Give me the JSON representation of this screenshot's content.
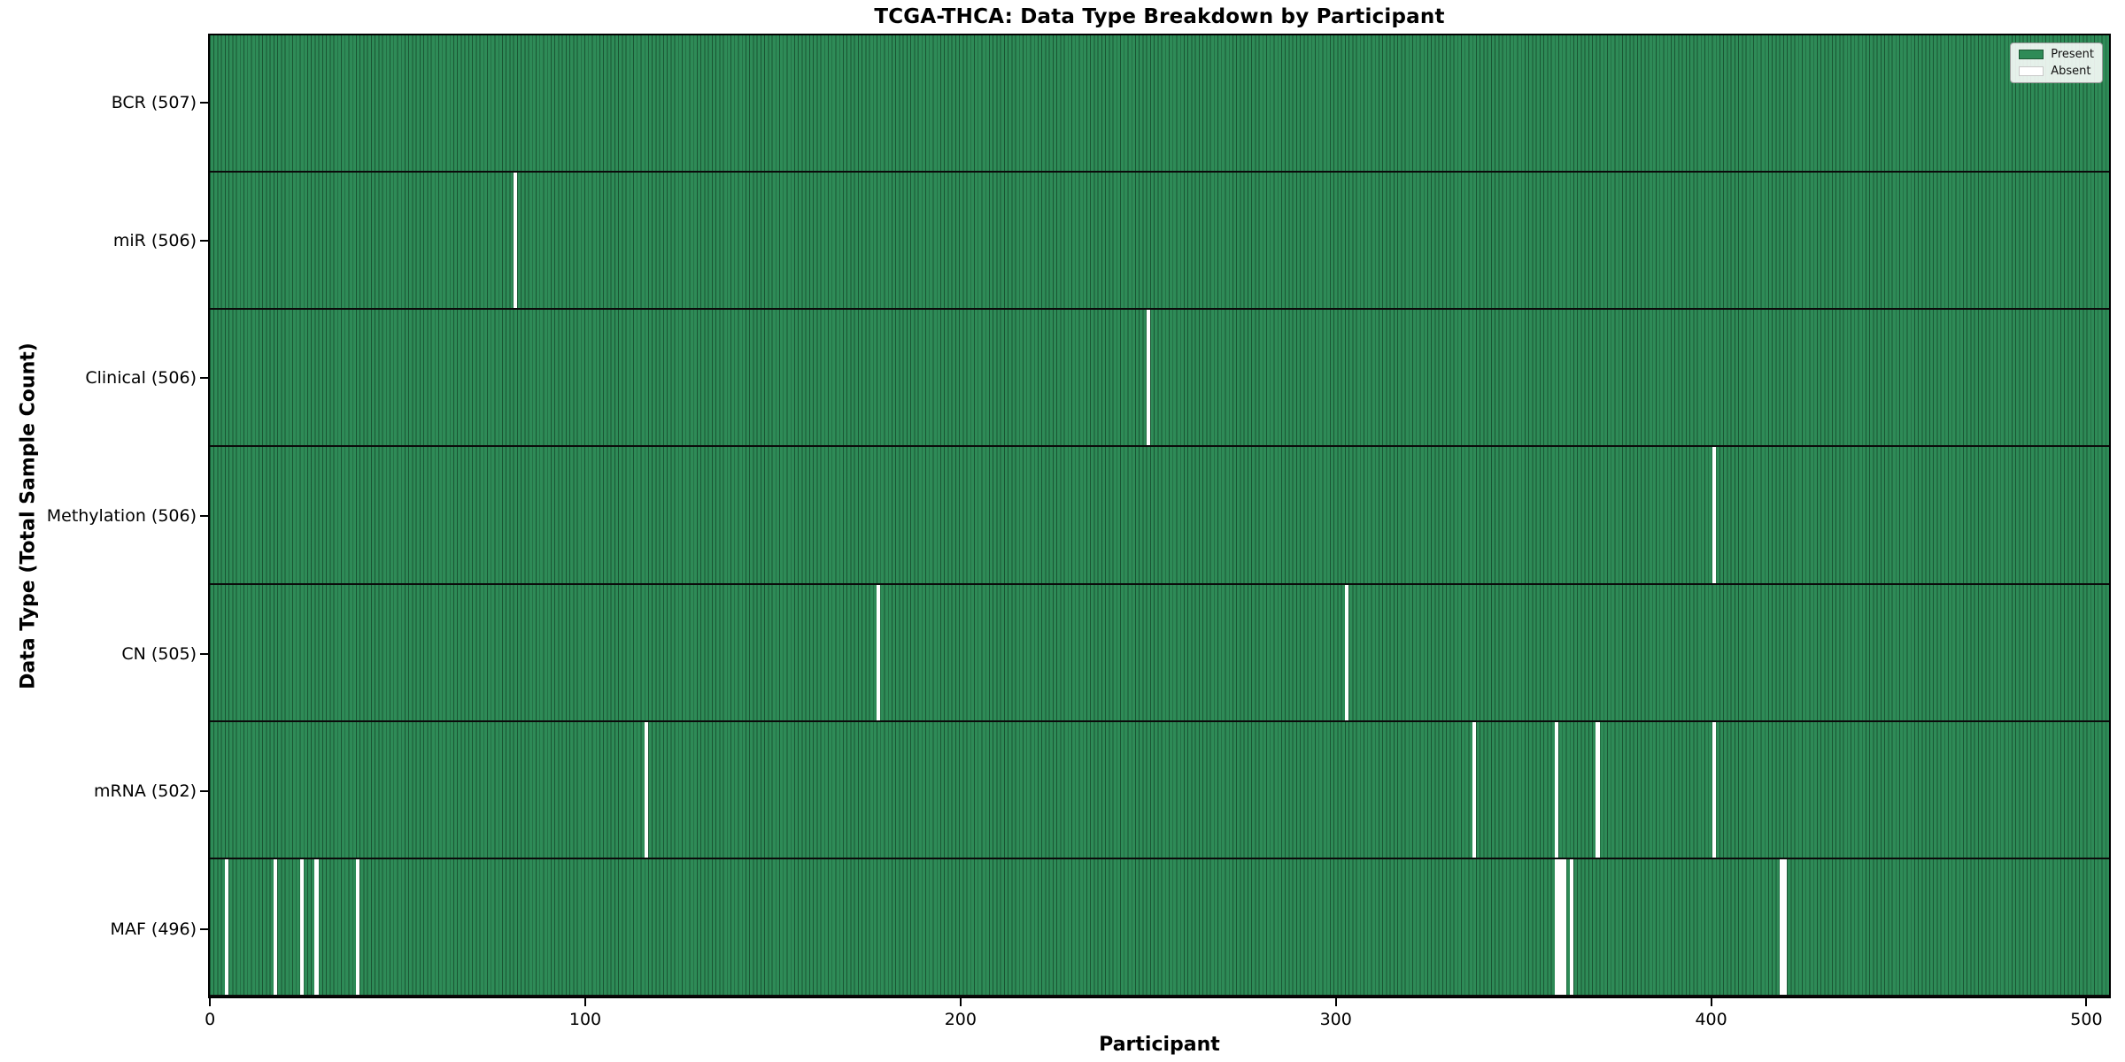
{
  "chart_data": {
    "type": "heatmap",
    "title": "TCGA-THCA: Data Type Breakdown by Participant",
    "xlabel": "Participant",
    "ylabel": "Data Type (Total Sample Count)",
    "n_participants": 507,
    "x_ticks": [
      0,
      100,
      200,
      300,
      400,
      500
    ],
    "legend": [
      {
        "label": "Present",
        "value": "present"
      },
      {
        "label": "Absent",
        "value": "absent"
      }
    ],
    "colors": {
      "present": "#2e8b57",
      "bar_edge": "rgba(8,40,22,0.55)",
      "absent": "#ffffff",
      "row_separator": "#0b0b0b"
    },
    "rows": [
      {
        "label": "BCR (507)",
        "data_type": "bcr",
        "total": 507,
        "absent_participants": []
      },
      {
        "label": "miR (506)",
        "data_type": "mir",
        "total": 506,
        "absent_participants": [
          81
        ]
      },
      {
        "label": "Clinical (506)",
        "data_type": "clinical",
        "total": 506,
        "absent_participants": [
          250
        ]
      },
      {
        "label": "Methylation (506)",
        "data_type": "methylation",
        "total": 506,
        "absent_participants": [
          401
        ]
      },
      {
        "label": "CN (505)",
        "data_type": "cn",
        "total": 505,
        "absent_participants": [
          178,
          303
        ]
      },
      {
        "label": "mRNA (502)",
        "data_type": "mrna",
        "total": 502,
        "absent_participants": [
          116,
          337,
          359,
          370,
          401
        ]
      },
      {
        "label": "MAF (496)",
        "data_type": "maf",
        "total": 496,
        "absent_participants": [
          4,
          17,
          24,
          28,
          39,
          359,
          360,
          361,
          363,
          419,
          420
        ]
      }
    ]
  }
}
